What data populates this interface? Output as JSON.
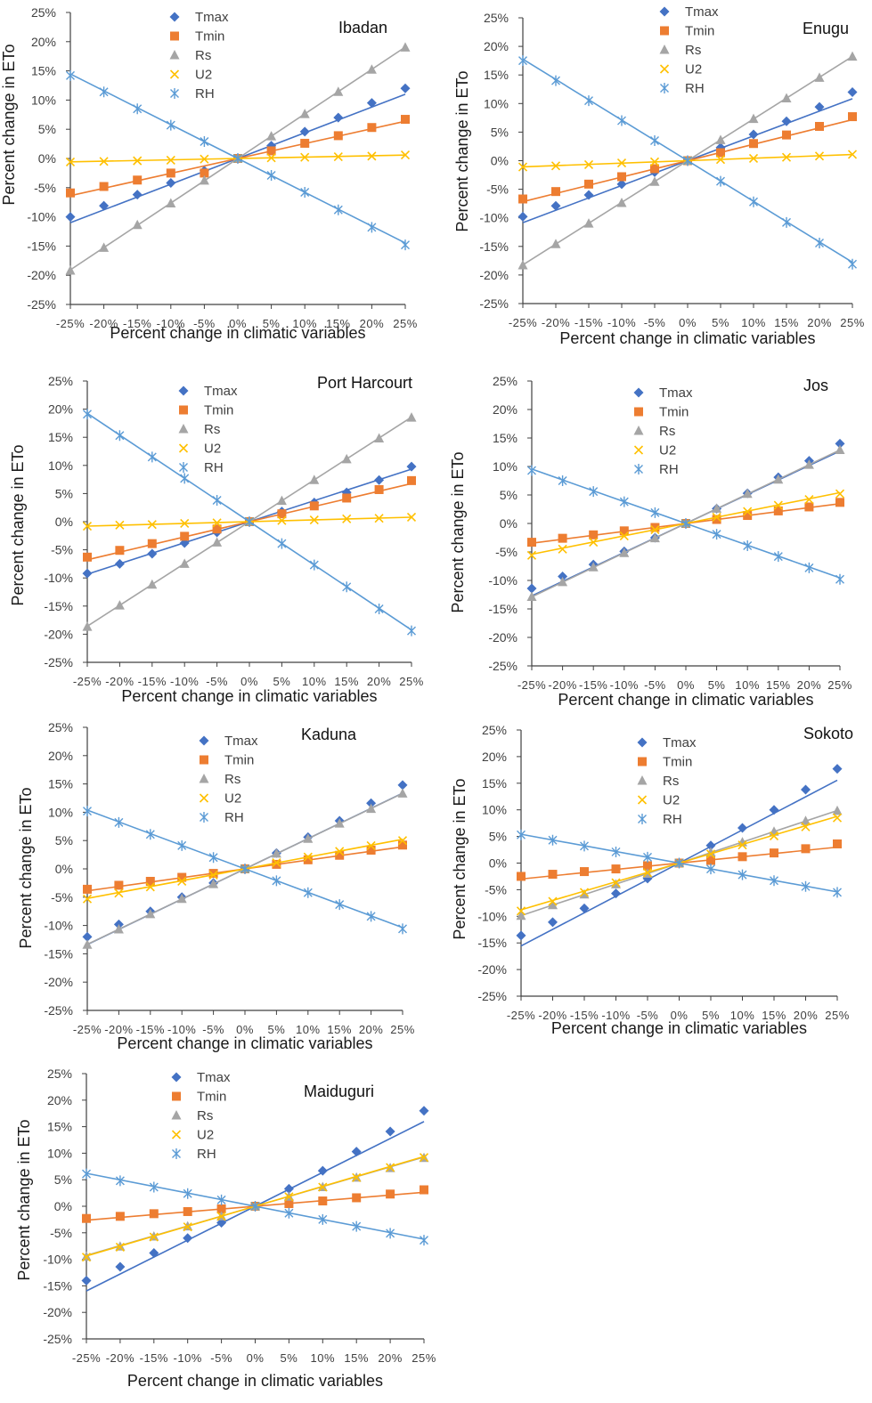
{
  "chart_data": [
    {
      "type": "line",
      "title": "Ibadan",
      "xlabel": "Percent change in climatic variables",
      "ylabel": "Percent change in ETo",
      "categories": [
        "-25%",
        "-20%",
        "-15%",
        "-10%",
        "-5%",
        "0%",
        "5%",
        "10%",
        "15%",
        "20%",
        "25%"
      ],
      "yticks": [
        "-25%",
        "-20%",
        "-15%",
        "-10%",
        "-5%",
        "0%",
        "5%",
        "10%",
        "15%",
        "20%",
        "25%"
      ],
      "ylim": [
        -25,
        25
      ],
      "series": [
        {
          "name": "Tmax",
          "values": [
            -10,
            -8.1,
            -6.2,
            -4.2,
            -2.1,
            0,
            2.2,
            4.6,
            7,
            9.5,
            12
          ]
        },
        {
          "name": "Tmin",
          "values": [
            -5.9,
            -4.8,
            -3.7,
            -2.5,
            -2.5,
            0,
            1.3,
            2.6,
            3.9,
            5.3,
            6.7
          ]
        },
        {
          "name": "Rs",
          "values": [
            -19.2,
            -15.3,
            -11.4,
            -7.7,
            -3.8,
            0,
            3.8,
            7.6,
            11.4,
            15.2,
            19
          ]
        },
        {
          "name": "U2",
          "values": [
            -0.6,
            -0.5,
            -0.4,
            -0.3,
            -0.1,
            0,
            0.1,
            0.2,
            0.3,
            0.4,
            0.6
          ]
        },
        {
          "name": "RH",
          "values": [
            14.2,
            11.4,
            8.5,
            5.7,
            2.9,
            0,
            -2.9,
            -5.8,
            -8.8,
            -11.8,
            -14.8
          ]
        }
      ]
    },
    {
      "type": "line",
      "title": "Enugu",
      "xlabel": "Percent change in climatic variables",
      "ylabel": "Percent change in ETo",
      "categories": [
        "-25%",
        "-20%",
        "-15%",
        "-10%",
        "-5%",
        "0%",
        "5%",
        "10%",
        "15%",
        "20%",
        "25%"
      ],
      "yticks": [
        "-25%",
        "-20%",
        "-15%",
        "-10%",
        "-5%",
        "0%",
        "5%",
        "10%",
        "15%",
        "20%",
        "25%"
      ],
      "ylim": [
        -25,
        25
      ],
      "series": [
        {
          "name": "Tmax",
          "values": [
            -9.8,
            -7.9,
            -6,
            -4.1,
            -2,
            0,
            2.3,
            4.6,
            6.9,
            9.4,
            12
          ]
        },
        {
          "name": "Tmin",
          "values": [
            -6.7,
            -5.4,
            -4.1,
            -2.8,
            -1.4,
            0,
            1.4,
            3,
            4.5,
            6,
            7.7
          ]
        },
        {
          "name": "Rs",
          "values": [
            -18.3,
            -14.6,
            -11,
            -7.4,
            -3.7,
            0,
            3.6,
            7.3,
            10.9,
            14.5,
            18.2
          ]
        },
        {
          "name": "U2",
          "values": [
            -1.1,
            -0.9,
            -0.7,
            -0.4,
            -0.2,
            0,
            0.2,
            0.4,
            0.6,
            0.8,
            1.1
          ]
        },
        {
          "name": "RH",
          "values": [
            17.5,
            14,
            10.5,
            7,
            3.5,
            0,
            -3.6,
            -7.2,
            -10.8,
            -14.4,
            -18.1
          ]
        }
      ]
    },
    {
      "type": "line",
      "title": "Port Harcourt",
      "xlabel": "Percent change in climatic variables",
      "ylabel": "Percent change in ETo",
      "categories": [
        "-25%",
        "-20%",
        "-15%",
        "-10%",
        "-5%",
        "0%",
        "5%",
        "10%",
        "15%",
        "20%",
        "25%"
      ],
      "yticks": [
        "-25%",
        "-20%",
        "-15%",
        "-10%",
        "-5%",
        "0%",
        "5%",
        "10%",
        "15%",
        "20%",
        "25%"
      ],
      "ylim": [
        -25,
        25
      ],
      "series": [
        {
          "name": "Tmax",
          "values": [
            -9.2,
            -7.5,
            -5.7,
            -3.8,
            -1.9,
            0,
            1.8,
            3.4,
            5.2,
            7.4,
            9.8
          ]
        },
        {
          "name": "Tmin",
          "values": [
            -6.3,
            -5.1,
            -3.9,
            -2.6,
            -1.3,
            0,
            1.4,
            2.8,
            4.2,
            5.7,
            7.3
          ]
        },
        {
          "name": "Rs",
          "values": [
            -18.7,
            -14.9,
            -11.2,
            -7.5,
            -3.7,
            0,
            3.7,
            7.4,
            11.1,
            14.8,
            18.5
          ]
        },
        {
          "name": "U2",
          "values": [
            -0.8,
            -0.6,
            -0.5,
            -0.3,
            -0.2,
            0,
            0.2,
            0.3,
            0.5,
            0.6,
            0.8
          ]
        },
        {
          "name": "RH",
          "values": [
            19.1,
            15.3,
            11.5,
            7.7,
            3.8,
            0,
            -3.9,
            -7.7,
            -11.6,
            -15.5,
            -19.4
          ]
        }
      ]
    },
    {
      "type": "line",
      "title": "Jos",
      "xlabel": "Percent change in climatic variables",
      "ylabel": "Percent change in ETo",
      "categories": [
        "-25%",
        "-20%",
        "-15%",
        "-10%",
        "-5%",
        "0%",
        "5%",
        "10%",
        "15%",
        "20%",
        "25%"
      ],
      "yticks": [
        "-25%",
        "-20%",
        "-15%",
        "-10%",
        "-5%",
        "0%",
        "5%",
        "10%",
        "15%",
        "20%",
        "25%"
      ],
      "ylim": [
        -25,
        25
      ],
      "series": [
        {
          "name": "Tmax",
          "values": [
            -11.4,
            -9.3,
            -7.2,
            -4.9,
            -2.5,
            0,
            2.6,
            5.3,
            8.1,
            11,
            14
          ]
        },
        {
          "name": "Tmin",
          "values": [
            -3.3,
            -2.6,
            -2,
            -1.3,
            -0.7,
            0,
            0.7,
            1.4,
            2.2,
            2.9,
            3.7
          ]
        },
        {
          "name": "Rs",
          "values": [
            -12.9,
            -10.3,
            -7.7,
            -5.2,
            -2.6,
            0,
            2.6,
            5.2,
            7.7,
            10.3,
            12.9
          ]
        },
        {
          "name": "U2",
          "values": [
            -5.6,
            -4.5,
            -3.3,
            -2.2,
            -1.1,
            0,
            1.1,
            2.1,
            3.2,
            4.2,
            5.2
          ]
        },
        {
          "name": "RH",
          "values": [
            9.3,
            7.5,
            5.6,
            3.8,
            1.9,
            0,
            -1.9,
            -3.9,
            -5.8,
            -7.8,
            -9.8
          ]
        }
      ]
    },
    {
      "type": "line",
      "title": "Kaduna",
      "xlabel": "Percent change in climatic variables",
      "ylabel": "Percent change in ETo",
      "categories": [
        "-25%",
        "-20%",
        "-15%",
        "-10%",
        "-5%",
        "0%",
        "5%",
        "10%",
        "15%",
        "20%",
        "25%"
      ],
      "yticks": [
        "-25%",
        "-20%",
        "-15%",
        "-10%",
        "-5%",
        "0%",
        "5%",
        "10%",
        "15%",
        "20%",
        "25%"
      ],
      "ylim": [
        -25,
        25
      ],
      "series": [
        {
          "name": "Tmax",
          "values": [
            -12,
            -9.8,
            -7.5,
            -5,
            -2.5,
            0,
            2.8,
            5.6,
            8.5,
            11.6,
            14.8
          ]
        },
        {
          "name": "Tmin",
          "values": [
            -3.6,
            -2.9,
            -2.2,
            -1.5,
            -0.8,
            0,
            0.8,
            1.6,
            2.4,
            3.3,
            4.2
          ]
        },
        {
          "name": "Rs",
          "values": [
            -13.4,
            -10.7,
            -8,
            -5.3,
            -2.7,
            0,
            2.7,
            5.3,
            8,
            10.6,
            13.3
          ]
        },
        {
          "name": "U2",
          "values": [
            -5.3,
            -4.3,
            -3.2,
            -2.2,
            -1.1,
            0,
            1.1,
            2.1,
            3.1,
            4.1,
            5
          ]
        },
        {
          "name": "RH",
          "values": [
            10.2,
            8.2,
            6.1,
            4.1,
            2,
            0,
            -2.1,
            -4.2,
            -6.3,
            -8.4,
            -10.6
          ]
        }
      ]
    },
    {
      "type": "line",
      "title": "Sokoto",
      "xlabel": "Percent change in climatic variables",
      "ylabel": "Percent change in ETo",
      "categories": [
        "-25%",
        "-20%",
        "-15%",
        "-10%",
        "-5%",
        "0%",
        "5%",
        "10%",
        "15%",
        "20%",
        "25%"
      ],
      "yticks": [
        "-25%",
        "-20%",
        "-15%",
        "-10%",
        "-5%",
        "0%",
        "5%",
        "10%",
        "15%",
        "20%",
        "25%"
      ],
      "ylim": [
        -25,
        25
      ],
      "series": [
        {
          "name": "Tmax",
          "values": [
            -13.6,
            -11.1,
            -8.5,
            -5.7,
            -2.9,
            0,
            3.3,
            6.6,
            10,
            13.8,
            17.7
          ]
        },
        {
          "name": "Tmin",
          "values": [
            -2.5,
            -2.1,
            -1.6,
            -1.1,
            -0.5,
            0,
            0.5,
            1.2,
            1.9,
            2.7,
            3.6
          ]
        },
        {
          "name": "Rs",
          "values": [
            -9.9,
            -7.9,
            -5.9,
            -4,
            -2,
            0,
            2,
            3.9,
            5.9,
            7.9,
            9.8
          ]
        },
        {
          "name": "U2",
          "values": [
            -9,
            -7.2,
            -5.5,
            -3.7,
            -1.8,
            0,
            1.7,
            3.4,
            5.1,
            6.8,
            8.5
          ]
        },
        {
          "name": "RH",
          "values": [
            5.3,
            4.3,
            3.2,
            2.1,
            1.1,
            0,
            -1.1,
            -2.2,
            -3.3,
            -4.4,
            -5.5
          ]
        }
      ]
    },
    {
      "type": "line",
      "title": "Maiduguri",
      "xlabel": "Percent change in climatic variables",
      "ylabel": "Percent change in ETo",
      "categories": [
        "-25%",
        "-20%",
        "-15%",
        "-10%",
        "-5%",
        "0%",
        "5%",
        "10%",
        "15%",
        "20%",
        "25%"
      ],
      "yticks": [
        "-25%",
        "-20%",
        "-15%",
        "-10%",
        "-5%",
        "0%",
        "5%",
        "10%",
        "15%",
        "20%",
        "25%"
      ],
      "ylim": [
        -25,
        25
      ],
      "series": [
        {
          "name": "Tmax",
          "values": [
            -14,
            -11.4,
            -8.8,
            -6,
            -3.1,
            0,
            3.3,
            6.7,
            10.3,
            14.1,
            18
          ]
        },
        {
          "name": "Tmin",
          "values": [
            -2.3,
            -1.9,
            -1.4,
            -1,
            -0.5,
            0,
            0.5,
            1,
            1.6,
            2.3,
            3.1
          ]
        },
        {
          "name": "Rs",
          "values": [
            -9.5,
            -7.6,
            -5.7,
            -3.8,
            -1.9,
            0,
            1.8,
            3.6,
            5.4,
            7.2,
            9.1
          ]
        },
        {
          "name": "U2",
          "values": [
            -9.6,
            -7.7,
            -5.8,
            -3.9,
            -1.9,
            0,
            1.8,
            3.6,
            5.4,
            7.3,
            9.2
          ]
        },
        {
          "name": "RH",
          "values": [
            6.1,
            4.8,
            3.6,
            2.4,
            1.2,
            0,
            -1.3,
            -2.5,
            -3.8,
            -5.1,
            -6.4
          ]
        }
      ]
    }
  ],
  "colors": {
    "Tmax": "#4472c4",
    "Tmin": "#ed7d31",
    "Rs": "#a5a5a5",
    "U2": "#ffc000",
    "RH": "#5b9bd5"
  },
  "markers": {
    "Tmax": "diamond",
    "Tmin": "square",
    "Rs": "triangle",
    "U2": "x-cross",
    "RH": "asterisk"
  }
}
